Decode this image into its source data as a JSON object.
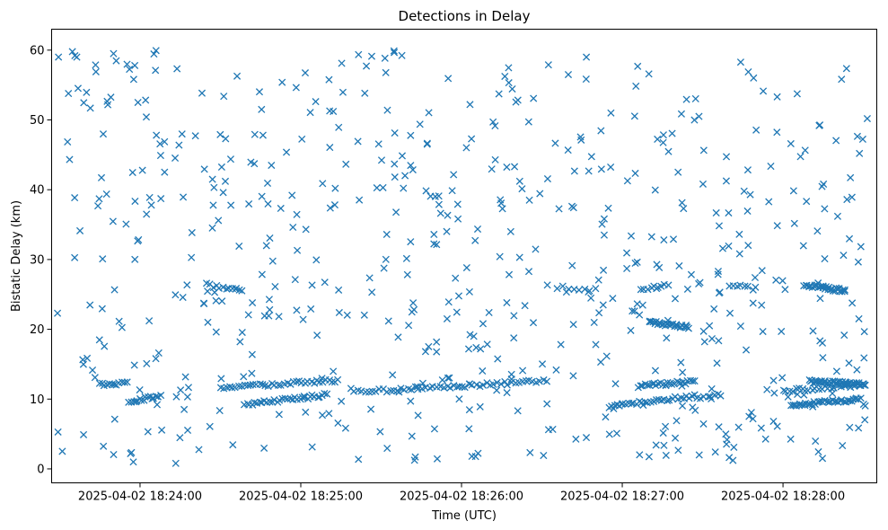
{
  "chart_data": {
    "type": "scatter",
    "title": "Detections in Delay",
    "xlabel": "Time (UTC)",
    "ylabel": "Bistatic Delay (km)",
    "marker": "x",
    "color": "#1f77b4",
    "grid": false,
    "legend": "none",
    "x_unit": "seconds of 2025-04-02 UTC",
    "x_range_seconds": [
      66207,
      66515
    ],
    "xlim": [
      "2025-04-02 18:23:27",
      "2025-04-02 18:28:35"
    ],
    "ylim": [
      -2,
      63
    ],
    "x_ticks": [
      {
        "t": 66240,
        "label": "2025-04-02 18:24:00"
      },
      {
        "t": 66300,
        "label": "2025-04-02 18:25:00"
      },
      {
        "t": 66360,
        "label": "2025-04-02 18:26:00"
      },
      {
        "t": 66420,
        "label": "2025-04-02 18:27:00"
      },
      {
        "t": 66480,
        "label": "2025-04-02 18:28:00"
      }
    ],
    "y_ticks": [
      0,
      10,
      20,
      30,
      40,
      50,
      60
    ],
    "tracks": [
      {
        "t_start": 66225,
        "t_end": 66235,
        "y_start": 12.0,
        "y_end": 12.3,
        "count": 12
      },
      {
        "t_start": 66236,
        "t_end": 66246,
        "y_start": 9.6,
        "y_end": 10.4,
        "count": 14
      },
      {
        "t_start": 66270,
        "t_end": 66314,
        "y_start": 11.6,
        "y_end": 12.7,
        "count": 40
      },
      {
        "t_start": 66279,
        "t_end": 66310,
        "y_start": 9.2,
        "y_end": 10.6,
        "count": 34
      },
      {
        "t_start": 66265,
        "t_end": 66278,
        "y_start": 26.4,
        "y_end": 25.4,
        "count": 12
      },
      {
        "t_start": 66320,
        "t_end": 66392,
        "y_start": 11.0,
        "y_end": 12.6,
        "count": 55
      },
      {
        "t_start": 66396,
        "t_end": 66410,
        "y_start": 26.0,
        "y_end": 25.6,
        "count": 8
      },
      {
        "t_start": 66415,
        "t_end": 66447,
        "y_start": 9.0,
        "y_end": 10.4,
        "count": 32
      },
      {
        "t_start": 66426,
        "t_end": 66447,
        "y_start": 11.9,
        "y_end": 12.5,
        "count": 26
      },
      {
        "t_start": 66427,
        "t_end": 66437,
        "y_start": 25.8,
        "y_end": 26.3,
        "count": 9
      },
      {
        "t_start": 66430,
        "t_end": 66445,
        "y_start": 21.0,
        "y_end": 20.3,
        "count": 30
      },
      {
        "t_start": 66448,
        "t_end": 66457,
        "y_start": 10.2,
        "y_end": 10.6,
        "count": 8
      },
      {
        "t_start": 66460,
        "t_end": 66470,
        "y_start": 26.3,
        "y_end": 25.8,
        "count": 8
      },
      {
        "t_start": 66480,
        "t_end": 66510,
        "y_start": 11.2,
        "y_end": 12.0,
        "count": 26
      },
      {
        "t_start": 66483,
        "t_end": 66509,
        "y_start": 9.1,
        "y_end": 10.0,
        "count": 38
      },
      {
        "t_start": 66490,
        "t_end": 66511,
        "y_start": 12.5,
        "y_end": 12.1,
        "count": 45
      },
      {
        "t_start": 66488,
        "t_end": 66503,
        "y_start": 26.4,
        "y_end": 25.5,
        "count": 30
      }
    ],
    "clutter": {
      "t_range": [
        66209,
        66512
      ],
      "y_range": [
        0.5,
        60
      ],
      "count": 620
    }
  }
}
